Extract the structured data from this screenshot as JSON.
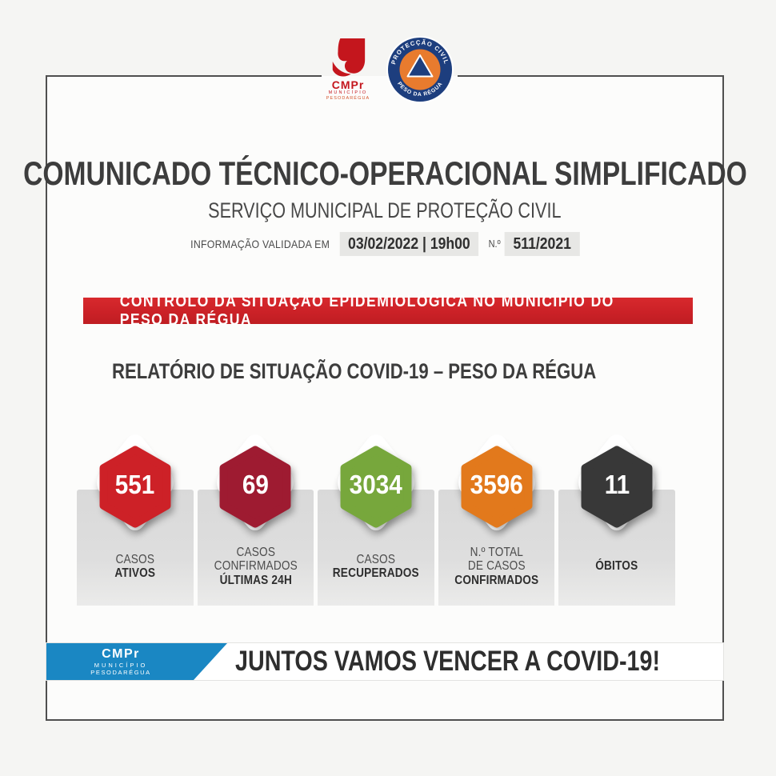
{
  "colors": {
    "banner_red": "#cb2127",
    "footer_blue": "#1a87c3",
    "emblem_navy": "#1d3e7e",
    "emblem_orange": "#e87b2e",
    "logo_red": "#c4161d"
  },
  "header": {
    "cmpr_logo": {
      "acronym": "CMPr",
      "municipality": "MUNICÍPIO",
      "name": "PESODARÉGUA"
    },
    "civil_protection_emblem": {
      "arc_top": "PROTECÇÃO CIVIL",
      "arc_bottom": "PESO DA RÉGUA"
    }
  },
  "title": "COMUNICADO TÉCNICO-OPERACIONAL SIMPLIFICADO",
  "subtitle": "SERVIÇO MUNICIPAL DE PROTEÇÃO CIVIL",
  "validation": {
    "label": "INFORMAÇÃO VALIDADA EM",
    "datetime": "03/02/2022 | 19h00",
    "number_label": "N.º",
    "number": "511/2021"
  },
  "banner": "CONTROLO DA SITUAÇÃO EPIDEMIOLÓGICA NO MUNICÍPIO DO PESO DA RÉGUA",
  "report_title": "RELATÓRIO DE SITUAÇÃO COVID-19 – PESO DA RÉGUA",
  "stats": [
    {
      "value": "551",
      "color": "#cd2127",
      "label_lines": [
        "CASOS",
        "ATIVOS"
      ]
    },
    {
      "value": "69",
      "color": "#9e1b31",
      "label_lines": [
        "CASOS",
        "CONFIRMADOS",
        "ÚLTIMAS 24H"
      ]
    },
    {
      "value": "3034",
      "color": "#77a73c",
      "label_lines": [
        "CASOS",
        "RECUPERADOS"
      ]
    },
    {
      "value": "3596",
      "color": "#e2791c",
      "label_lines": [
        "N.º TOTAL",
        "DE CASOS",
        "CONFIRMADOS"
      ]
    },
    {
      "value": "11",
      "color": "#383838",
      "label_lines": [
        "ÓBITOS"
      ]
    }
  ],
  "footer": {
    "slogan": "JUNTOS VAMOS VENCER A COVID-19!",
    "logo": {
      "acronym": "CMPr",
      "municipality": "MUNICÍPIO",
      "name": "PESODARÉGUA"
    }
  }
}
